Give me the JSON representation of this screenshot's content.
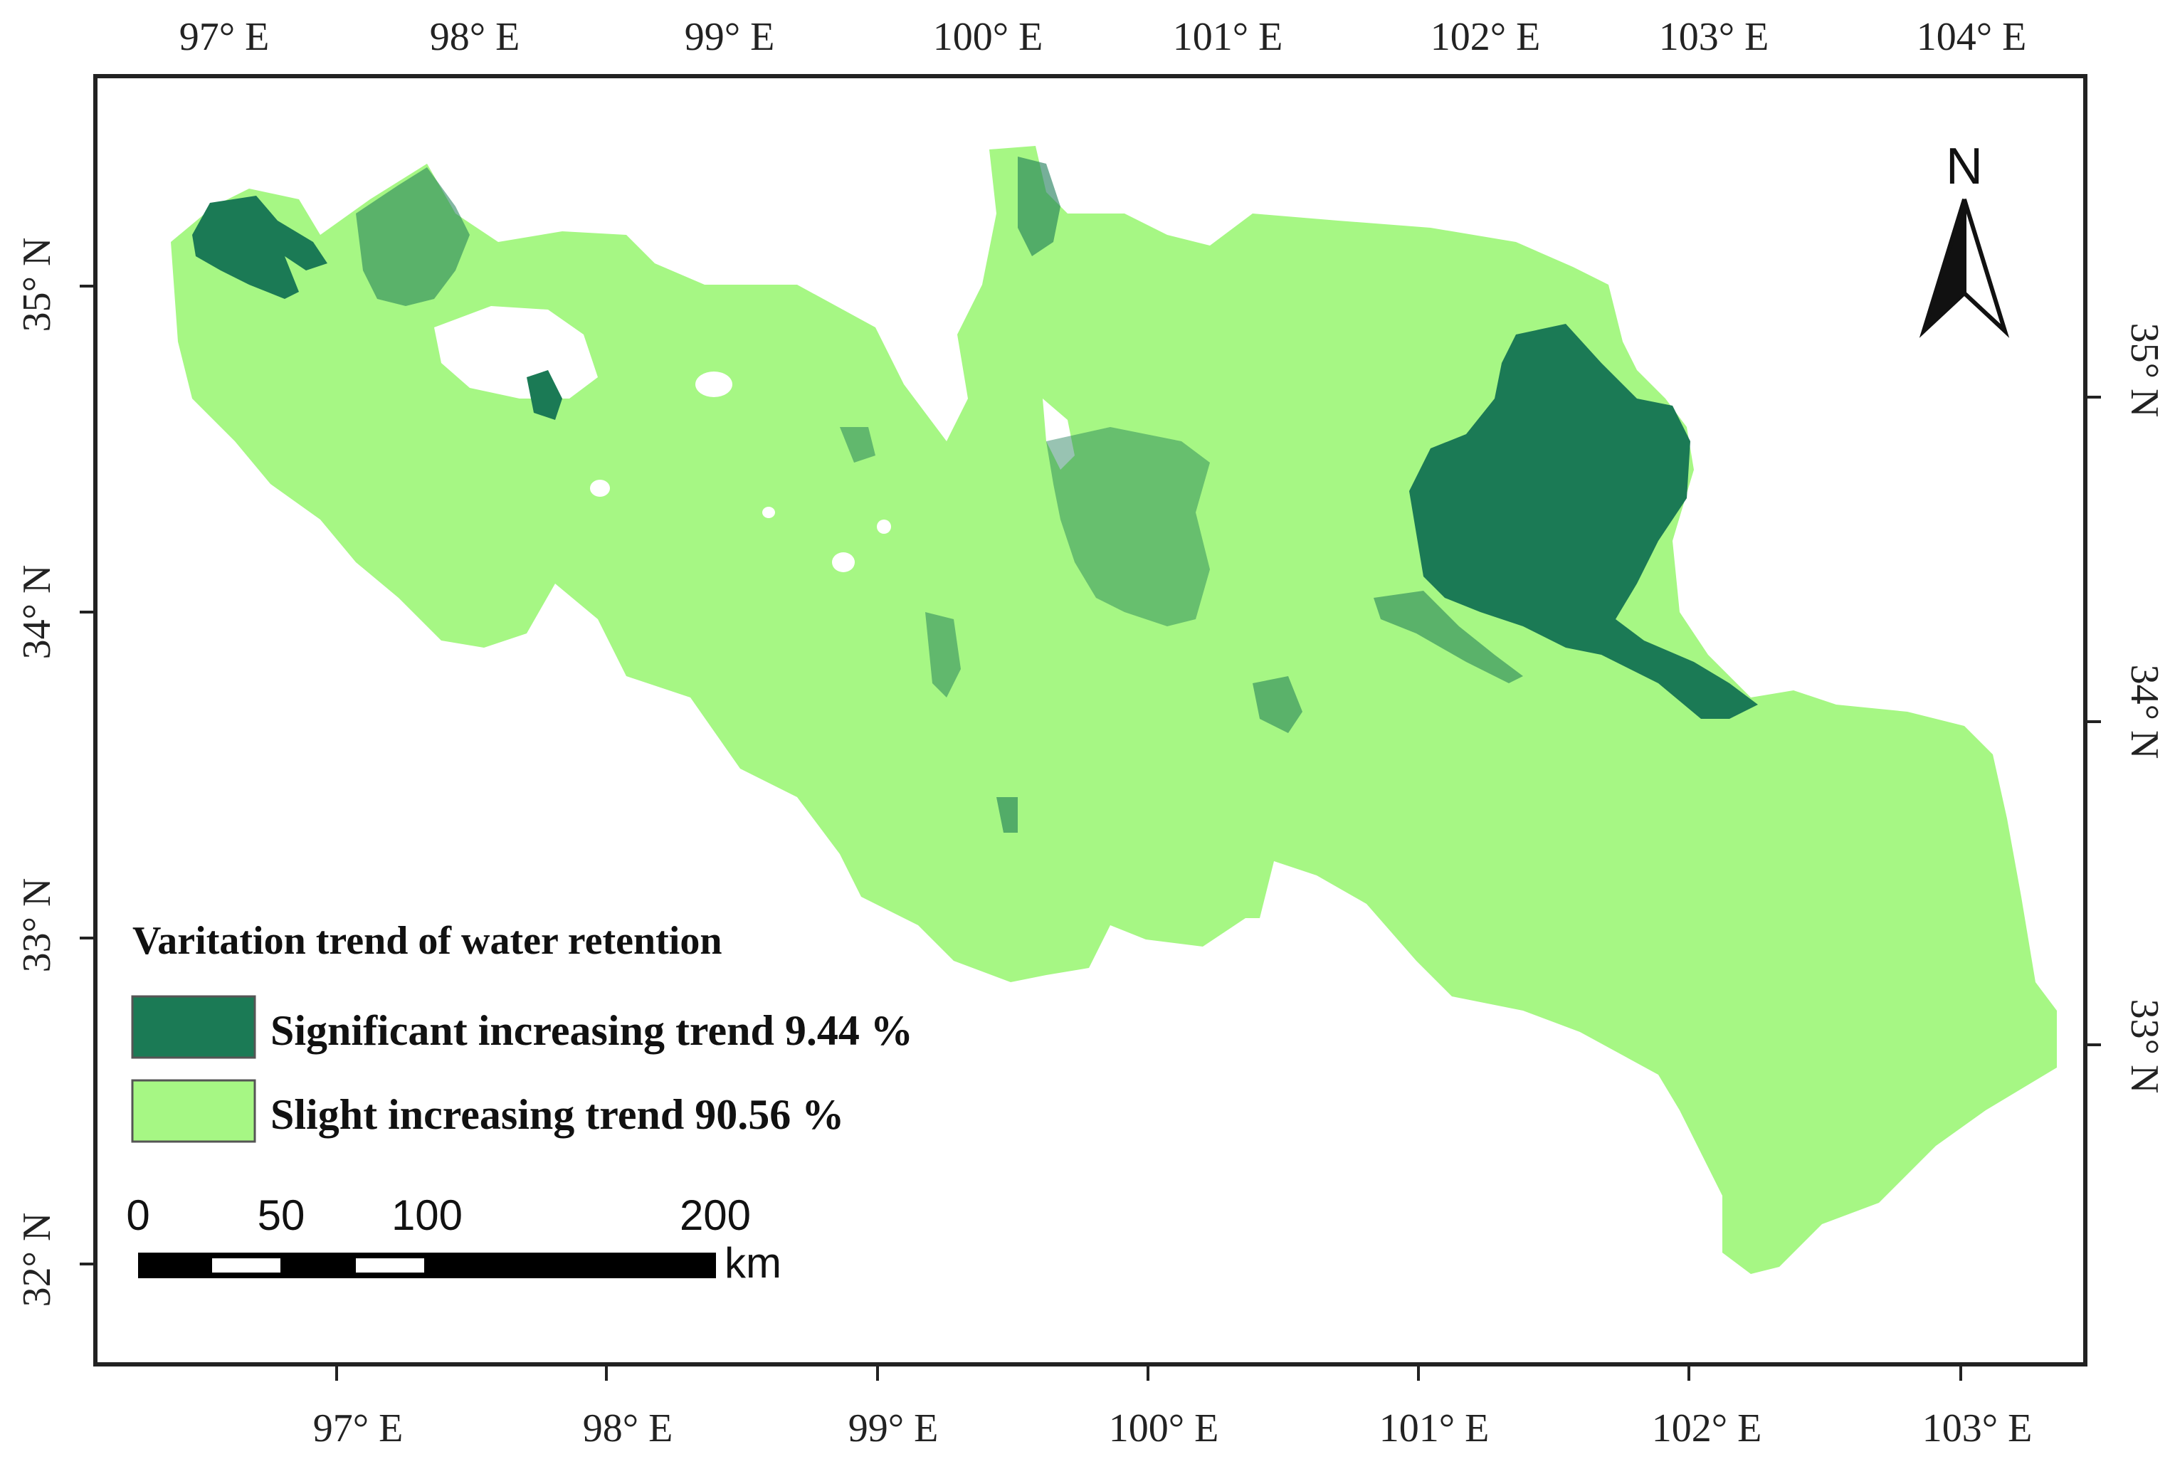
{
  "colors": {
    "significant": "#1b7a55",
    "slight": "#a6f784",
    "frame": "#222222",
    "background": "#ffffff"
  },
  "top_longitude_labels": [
    "97° E",
    "98° E",
    "99° E",
    "100° E",
    "101° E",
    "102° E",
    "103° E",
    "104° E"
  ],
  "bottom_longitude_labels": [
    "97° E",
    "98° E",
    "99° E",
    "100° E",
    "101° E",
    "102° E",
    "103° E"
  ],
  "left_latitude_labels": [
    "35° N",
    "34° N",
    "33° N",
    "32° N"
  ],
  "right_latitude_labels": [
    "35° N",
    "34° N",
    "33° N"
  ],
  "north_arrow": {
    "label": "N",
    "icon": "north-arrow-icon"
  },
  "legend": {
    "title": "Varitation trend of water retention",
    "items": [
      {
        "label": "Significant increasing trend 9.44 %",
        "color": "#1b7a55"
      },
      {
        "label": "Slight increasing trend 90.56 %",
        "color": "#a6f784"
      }
    ]
  },
  "scale_bar": {
    "ticks": [
      "0",
      "50",
      "100",
      "200"
    ],
    "unit": "km"
  }
}
